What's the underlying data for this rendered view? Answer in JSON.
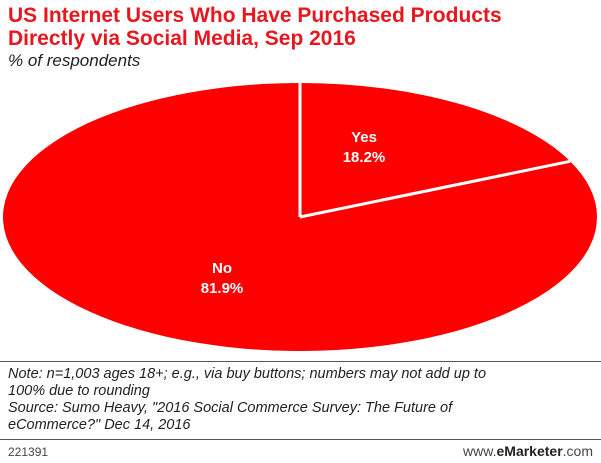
{
  "title_line1": "US Internet Users Who Have Purchased Products",
  "title_line2": "Directly via Social Media, Sep 2016",
  "subtitle": "% of respondents",
  "chart_data": {
    "type": "pie",
    "slices": [
      {
        "label": "Yes",
        "value": 18.2,
        "value_text": "18.2%"
      },
      {
        "label": "No",
        "value": 81.9,
        "value_text": "81.9%"
      }
    ],
    "color": "#ff0000",
    "divider_color": "#ffffff"
  },
  "note_line1": "Note: n=1,003 ages 18+; e.g., via buy buttons; numbers may not add up to",
  "note_line2": "100% due to rounding",
  "source_line1": "Source: Sumo Heavy, \"2016 Social Commerce Survey: The Future of",
  "source_line2": "eCommerce?\" Dec 14, 2016",
  "chart_id": "221391",
  "brand": {
    "prefix": "www.",
    "name": "eMarketer",
    "suffix": ".com"
  },
  "colors": {
    "title": "#e8171f",
    "pie": "#ff0000"
  }
}
